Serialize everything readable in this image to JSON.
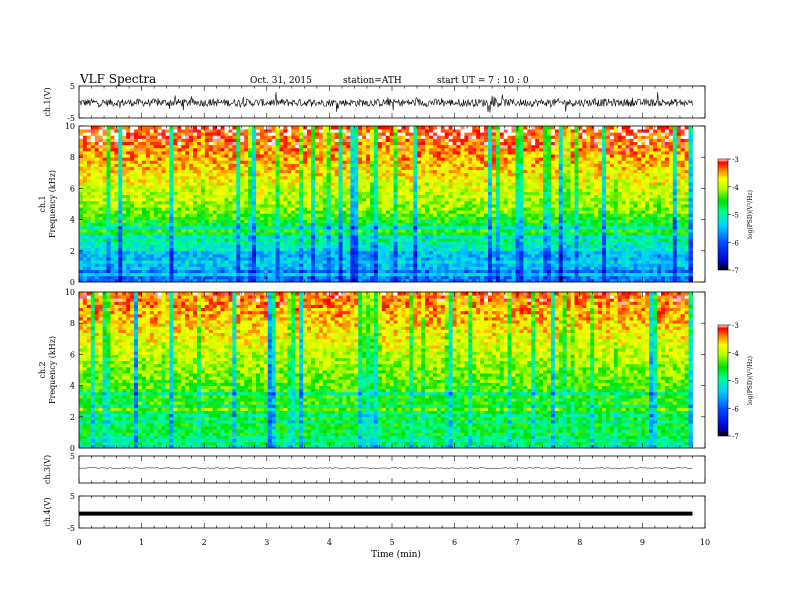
{
  "header": {
    "title": "VLF Spectra",
    "date": "Oct. 31, 2015",
    "station": "station=ATH",
    "start": "start  UT =   7 : 10 : 0"
  },
  "chart_data": {
    "type": "heatmap",
    "xlabel": "Time  (min)",
    "xlim": [
      0,
      10
    ],
    "x_ticks": [
      "0",
      "1",
      "2",
      "3",
      "4",
      "5",
      "6",
      "7",
      "8",
      "9",
      "10"
    ],
    "data_end_min": 9.8,
    "panels": [
      {
        "id": "ch1_waveform",
        "type": "line",
        "ylabel": "ch.1(V)",
        "ylim": [
          -5,
          5
        ],
        "y_ticks": [
          "5",
          "-5"
        ],
        "baseline": -0.2,
        "noise_amplitude": 1.2,
        "style": "noisy"
      },
      {
        "id": "ch1_spectrogram",
        "type": "heatmap",
        "ylabel_top": "ch.1",
        "ylabel": "Frequency  (kHz)",
        "ylim": [
          0,
          10
        ],
        "y_ticks": [
          "0",
          "2",
          "4",
          "6",
          "8",
          "10"
        ],
        "colorbar": {
          "label": "log(PSD)(V²/Hz)",
          "range": [
            -7,
            -3
          ],
          "ticks": [
            "-3",
            "-4",
            "-5",
            "-6",
            "-7"
          ]
        },
        "description": "broadband activity; high PSD (red) above ~6 kHz, lower PSD (blue) below ~2 kHz with horizontal interference lines"
      },
      {
        "id": "ch2_spectrogram",
        "type": "heatmap",
        "ylabel_top": "ch.2",
        "ylabel": "Frequency  (kHz)",
        "ylim": [
          0,
          10
        ],
        "y_ticks": [
          "0",
          "2",
          "4",
          "6",
          "8",
          "10"
        ],
        "colorbar": {
          "label": "log(PSD)(V²/Hz)",
          "range": [
            -7,
            -3
          ],
          "ticks": [
            "-3",
            "-4",
            "-5",
            "-6",
            "-7"
          ]
        },
        "description": "broadband activity with red/yellow upper band and green lower band, stronger vertical streaks"
      },
      {
        "id": "ch3_waveform",
        "type": "line",
        "ylabel": "ch.3(V)",
        "ylim": [
          -5,
          5
        ],
        "y_ticks": [
          "5"
        ],
        "baseline": 0.5,
        "noise_amplitude": 0.2,
        "style": "thin"
      },
      {
        "id": "ch4_waveform",
        "type": "line",
        "ylabel": "ch.4(V)",
        "ylim": [
          -5,
          5
        ],
        "y_ticks": [
          "5",
          "-5"
        ],
        "baseline": -0.5,
        "noise_amplitude": 0.0,
        "style": "thick"
      }
    ]
  }
}
